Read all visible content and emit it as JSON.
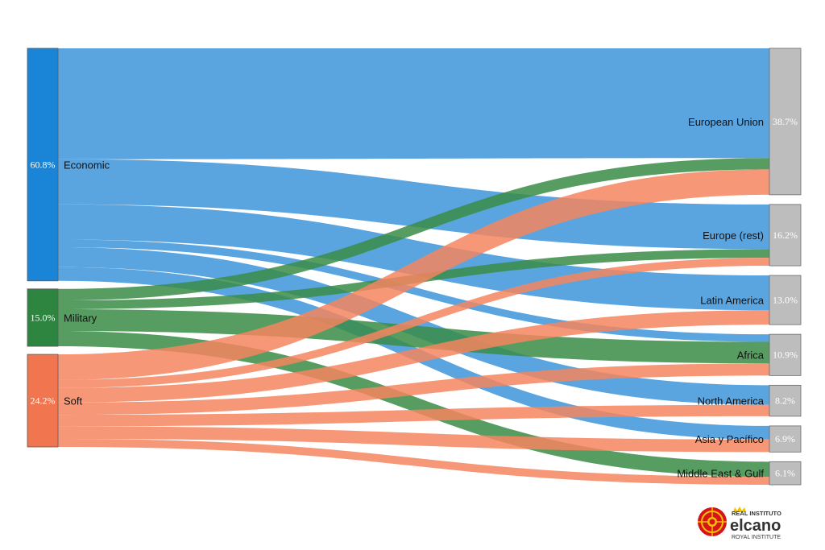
{
  "chart_data": {
    "type": "sankey",
    "sources": [
      {
        "id": "economic",
        "name": "Economic",
        "value_label": "60.8%",
        "value": 60.8,
        "color": "#1a85d6",
        "link_color": "#3d95db"
      },
      {
        "id": "military",
        "name": "Military",
        "value_label": "15.0%",
        "value": 15.0,
        "color": "#2e8540",
        "link_color": "#3a8c47"
      },
      {
        "id": "soft",
        "name": "Soft",
        "value_label": "24.2%",
        "value": 24.2,
        "color": "#f1754e",
        "link_color": "#f4855f"
      }
    ],
    "targets": [
      {
        "id": "eu",
        "name": "European Union",
        "value_label": "38.7%",
        "value": 38.7,
        "color": "#bdbdbd"
      },
      {
        "id": "europe_rest",
        "name": "Europe (rest)",
        "value_label": "16.2%",
        "value": 16.2,
        "color": "#bdbdbd"
      },
      {
        "id": "latam",
        "name": "Latin America",
        "value_label": "13.0%",
        "value": 13.0,
        "color": "#bdbdbd"
      },
      {
        "id": "africa",
        "name": "Africa",
        "value_label": "10.9%",
        "value": 10.9,
        "color": "#bdbdbd"
      },
      {
        "id": "north_america",
        "name": "North America",
        "value_label": "8.2%",
        "value": 8.2,
        "color": "#bdbdbd"
      },
      {
        "id": "asia_pacific",
        "name": "Asia y Pacífico",
        "value_label": "6.9%",
        "value": 6.9,
        "color": "#bdbdbd"
      },
      {
        "id": "middle_east",
        "name": "Middle East & Gulf",
        "value_label": "6.1%",
        "value": 6.1,
        "color": "#bdbdbd"
      }
    ],
    "links": [
      {
        "source": "economic",
        "target": "eu",
        "value": 29.0
      },
      {
        "source": "economic",
        "target": "europe_rest",
        "value": 11.8
      },
      {
        "source": "economic",
        "target": "latam",
        "value": 9.2
      },
      {
        "source": "economic",
        "target": "africa",
        "value": 2.0
      },
      {
        "source": "economic",
        "target": "north_america",
        "value": 5.2
      },
      {
        "source": "economic",
        "target": "asia_pacific",
        "value": 3.6
      },
      {
        "source": "military",
        "target": "eu",
        "value": 3.0
      },
      {
        "source": "military",
        "target": "europe_rest",
        "value": 2.3
      },
      {
        "source": "military",
        "target": "africa",
        "value": 5.7
      },
      {
        "source": "military",
        "target": "middle_east",
        "value": 4.0
      },
      {
        "source": "soft",
        "target": "eu",
        "value": 6.7
      },
      {
        "source": "soft",
        "target": "europe_rest",
        "value": 2.1
      },
      {
        "source": "soft",
        "target": "latam",
        "value": 3.8
      },
      {
        "source": "soft",
        "target": "africa",
        "value": 3.2
      },
      {
        "source": "soft",
        "target": "north_america",
        "value": 3.0
      },
      {
        "source": "soft",
        "target": "asia_pacific",
        "value": 3.3
      },
      {
        "source": "soft",
        "target": "middle_east",
        "value": 2.1
      }
    ]
  },
  "logo": {
    "line1": "REAL INSTITUTO",
    "line2": "elcano",
    "line3": "ROYAL INSTITUTE",
    "colors": {
      "red": "#d7141a",
      "yellow": "#f2c200",
      "text": "#333333"
    }
  }
}
